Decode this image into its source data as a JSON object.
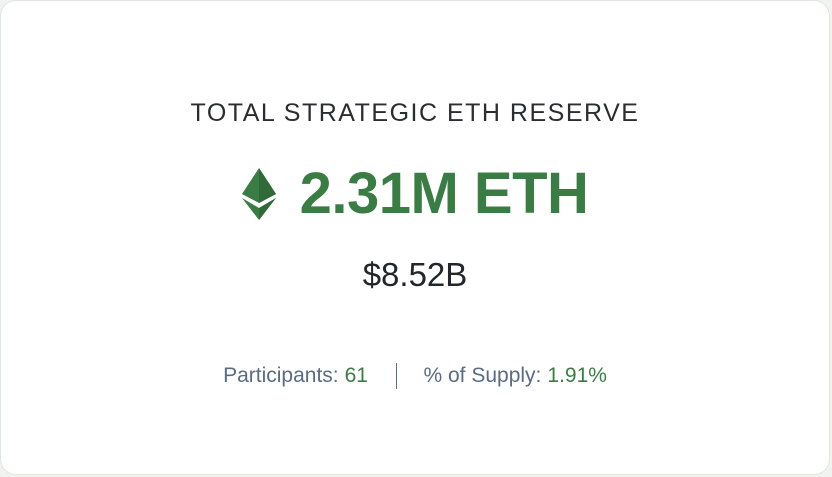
{
  "reserve": {
    "title": "TOTAL STRATEGIC ETH RESERVE",
    "icon": "ethereum-icon",
    "amount": "2.31M ETH",
    "usd_value": "$8.52B",
    "accent_color": "#3a7d44"
  },
  "stats": {
    "participants_label": "Participants:",
    "participants_value": "61",
    "supply_label": "% of Supply:",
    "supply_value": "1.91%"
  }
}
